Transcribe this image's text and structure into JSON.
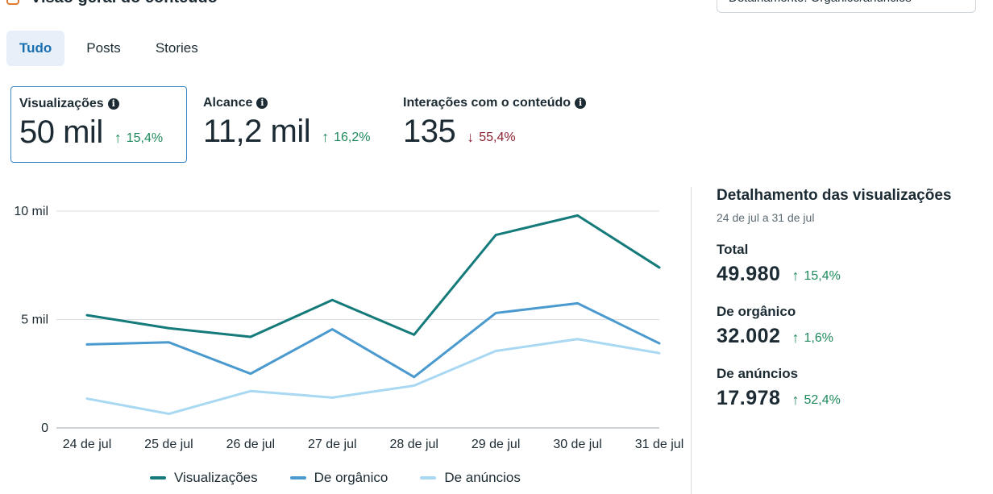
{
  "header": {
    "title": "Visão geral do conteúdo",
    "dropdown_value": "Detalhamento: Orgânico/anúncios"
  },
  "tabs": [
    {
      "label": "Tudo",
      "active": true
    },
    {
      "label": "Posts",
      "active": false
    },
    {
      "label": "Stories",
      "active": false
    }
  ],
  "metrics": [
    {
      "label": "Visualizações",
      "value": "50 mil",
      "delta": "15,4%",
      "direction": "up",
      "selected": true
    },
    {
      "label": "Alcance",
      "value": "11,2 mil",
      "delta": "16,2%",
      "direction": "up",
      "selected": false
    },
    {
      "label": "Interações com o conteúdo",
      "value": "135",
      "delta": "55,4%",
      "direction": "down",
      "selected": false
    }
  ],
  "chart_data": {
    "type": "line",
    "categories": [
      "24 de jul",
      "25 de jul",
      "26 de jul",
      "27 de jul",
      "28 de jul",
      "29 de jul",
      "30 de jul",
      "31 de jul"
    ],
    "y_ticks": [
      {
        "value": 0,
        "label": "0"
      },
      {
        "value": 5000,
        "label": "5 mil"
      },
      {
        "value": 10000,
        "label": "10 mil"
      }
    ],
    "ylim": [
      0,
      10000
    ],
    "series": [
      {
        "name": "Visualizações",
        "color": "#147a7a",
        "values": [
          5200,
          4600,
          4200,
          5900,
          4300,
          8900,
          9800,
          7400
        ]
      },
      {
        "name": "De orgânico",
        "color": "#4a9acf",
        "values": [
          3850,
          3950,
          2500,
          4550,
          2350,
          5300,
          5750,
          3900
        ]
      },
      {
        "name": "De anúncios",
        "color": "#a9d8f2",
        "values": [
          1350,
          650,
          1700,
          1400,
          1950,
          3550,
          4100,
          3450
        ]
      }
    ],
    "legend_position": "bottom",
    "grid": true
  },
  "breakdown": {
    "title": "Detalhamento das visualizações",
    "date_range": "24 de jul a 31 de jul",
    "items": [
      {
        "label": "Total",
        "value": "49.980",
        "delta": "15,4%"
      },
      {
        "label": "De orgânico",
        "value": "32.002",
        "delta": "1,6%"
      },
      {
        "label": "De anúncios",
        "value": "17.978",
        "delta": "52,4%"
      }
    ]
  },
  "colors": {
    "accent": "#1a6fb0",
    "up": "#1e8a5b",
    "down": "#8a1f2d"
  }
}
